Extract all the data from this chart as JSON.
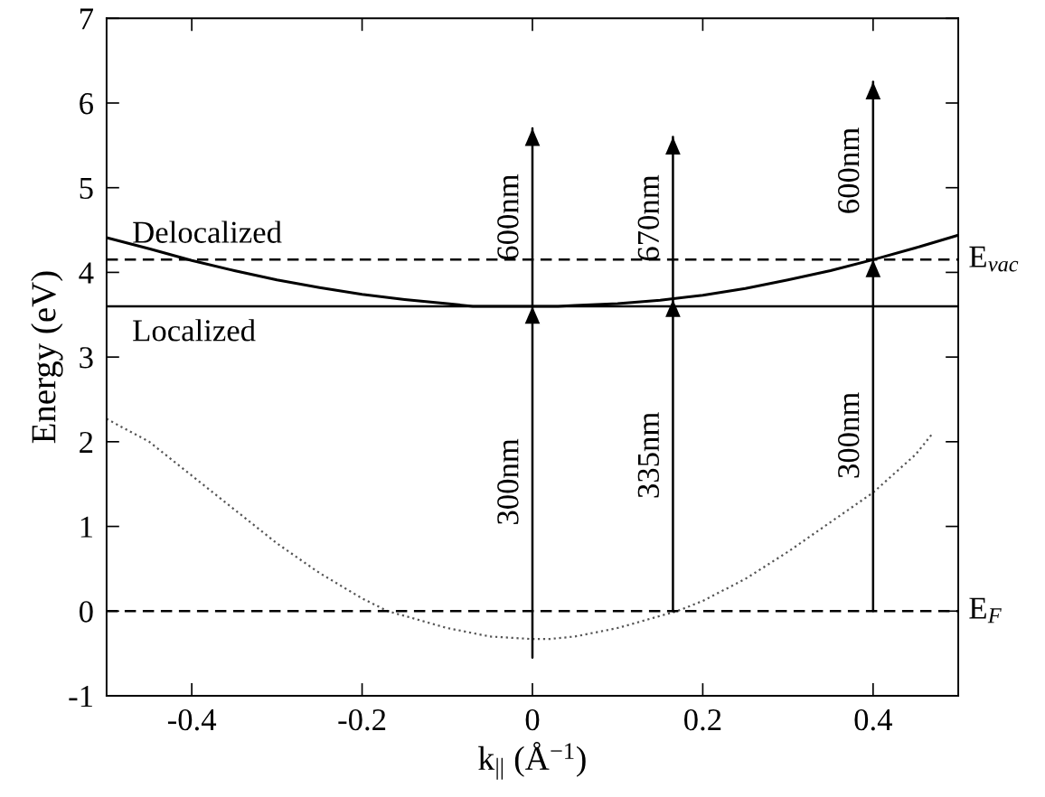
{
  "chart_data": {
    "type": "line",
    "xlabel": "k$_{||}$ (Å$^{−1}$)",
    "ylabel": "Energy (eV)",
    "xlim": [
      -0.5,
      0.5
    ],
    "xticks": [
      -0.4,
      -0.2,
      0,
      0.2,
      0.4
    ],
    "ylim": [
      -1,
      7
    ],
    "yticks": [
      -1,
      0,
      1,
      2,
      3,
      4,
      5,
      6,
      7
    ],
    "grid": false,
    "legend": false,
    "series": [
      {
        "color": "#000000",
        "line_style": "solid",
        "marker": "none",
        "x": [
          -0.5,
          -0.45,
          -0.4,
          -0.35,
          -0.3,
          -0.25,
          -0.2,
          -0.15,
          -0.1,
          -0.07,
          0,
          0.03,
          0.05,
          0.1,
          0.15,
          0.2,
          0.25,
          0.3,
          0.35,
          0.4,
          0.45,
          0.5
        ],
        "values": [
          4.41,
          4.28,
          4.14,
          4.02,
          3.91,
          3.82,
          3.74,
          3.68,
          3.63,
          3.6,
          3.6,
          3.6,
          3.61,
          3.63,
          3.67,
          3.73,
          3.81,
          3.91,
          4.02,
          4.15,
          4.29,
          4.44
        ]
      },
      {
        "color": "#555555",
        "line_style": "dotted",
        "marker": "none",
        "x": [
          -0.5,
          -0.45,
          -0.4,
          -0.35,
          -0.3,
          -0.25,
          -0.2,
          -0.17,
          -0.1,
          -0.05,
          0,
          0.02,
          0.05,
          0.1,
          0.17,
          0.2,
          0.25,
          0.3,
          0.35,
          0.4,
          0.45,
          0.47
        ],
        "values": [
          2.27,
          2.0,
          1.6,
          1.2,
          0.8,
          0.45,
          0.15,
          0.0,
          -0.2,
          -0.3,
          -0.33,
          -0.33,
          -0.3,
          -0.2,
          0.0,
          0.12,
          0.38,
          0.7,
          1.05,
          1.4,
          1.85,
          2.1
        ]
      },
      {
        "color": "#000000",
        "line_style": "solid",
        "x": [
          0,
          0
        ],
        "values": [
          -0.55,
          3.6
        ]
      },
      {
        "color": "#000000",
        "line_style": "solid",
        "x": [
          0,
          0
        ],
        "values": [
          3.6,
          5.7
        ]
      },
      {
        "color": "#000000",
        "line_style": "solid",
        "x": [
          0.165,
          0.165
        ],
        "values": [
          0,
          3.68
        ]
      },
      {
        "color": "#000000",
        "line_style": "solid",
        "x": [
          0.165,
          0.165
        ],
        "values": [
          3.68,
          5.6
        ]
      },
      {
        "color": "#000000",
        "line_style": "solid",
        "x": [
          0.4,
          0.4
        ],
        "values": [
          0,
          4.15
        ]
      },
      {
        "color": "#000000",
        "line_style": "solid",
        "x": [
          0.4,
          0.4
        ],
        "values": [
          4.15,
          6.25
        ]
      }
    ],
    "ref_lines": [
      {
        "axis": "y",
        "value": 0,
        "label": "E$_{F}$",
        "line_style": "dashed",
        "color": "#000000"
      },
      {
        "axis": "y",
        "value": 4.15,
        "label": "E$_{vac}$",
        "line_style": "dashed",
        "color": "#000000"
      },
      {
        "axis": "y",
        "value": 3.6,
        "label": null,
        "line_style": "solid",
        "color": "#000000"
      }
    ],
    "annotations": [
      "300nm",
      "600nm",
      "335nm",
      "670nm",
      "300nm",
      "600nm",
      "Delocalized",
      "Localized"
    ]
  }
}
